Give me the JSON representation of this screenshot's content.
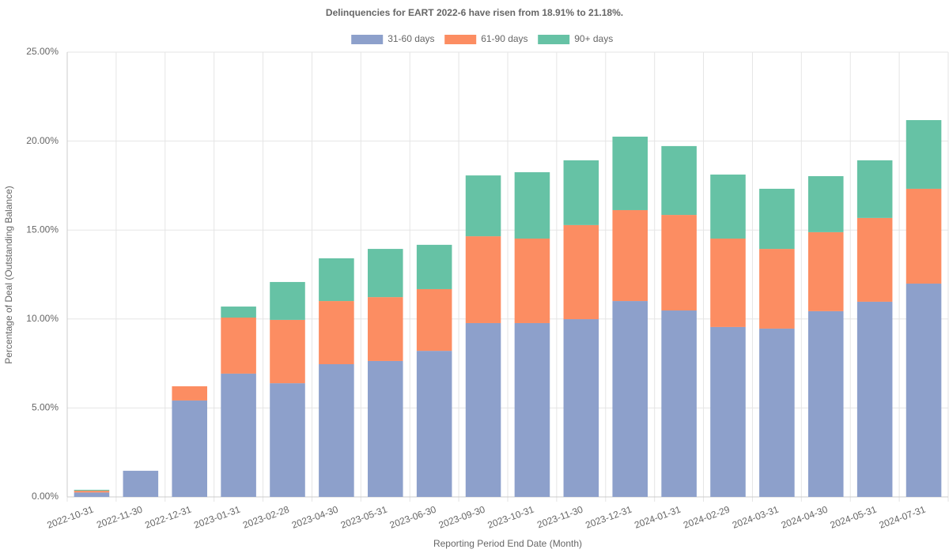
{
  "chart_data": {
    "type": "stacked_bar",
    "title": "Delinquencies for EART 2022-6 have risen from 18.91% to 21.18%.",
    "x_label": "Reporting Period End Date (Month)",
    "y_label": "Percentage of Deal (Outstanding Balance)",
    "categories": [
      "2022-10-31",
      "2022-11-30",
      "2022-12-31",
      "2023-01-31",
      "2023-02-28",
      "2023-04-30",
      "2023-05-31",
      "2023-06-30",
      "2023-09-30",
      "2023-10-31",
      "2023-11-30",
      "2023-12-31",
      "2024-01-31",
      "2024-02-29",
      "2024-03-31",
      "2024-04-30",
      "2024-05-31",
      "2024-07-31"
    ],
    "series": [
      {
        "name": "31-60 days",
        "color": "#8da0cb",
        "values": [
          0.25,
          1.47,
          5.42,
          6.93,
          6.39,
          7.46,
          7.64,
          8.21,
          9.77,
          9.77,
          9.99,
          11.01,
          10.48,
          9.55,
          9.46,
          10.44,
          10.97,
          11.99
        ]
      },
      {
        "name": "61-90 days",
        "color": "#fc8d62",
        "values": [
          0.1,
          0,
          0.8,
          3.15,
          3.56,
          3.55,
          3.59,
          3.47,
          4.88,
          4.75,
          5.29,
          5.11,
          5.37,
          4.97,
          4.48,
          4.44,
          4.71,
          5.33
        ]
      },
      {
        "name": "90+ days",
        "color": "#66c2a5",
        "values": [
          0.05,
          0,
          0,
          0.62,
          2.13,
          2.4,
          2.71,
          2.49,
          3.42,
          3.73,
          3.64,
          4.13,
          3.87,
          3.6,
          3.38,
          3.15,
          3.24,
          3.86
        ]
      }
    ],
    "ylim": [
      0,
      25
    ],
    "yticks": [
      {
        "value": 0,
        "label": "0.00%"
      },
      {
        "value": 5,
        "label": "5.00%"
      },
      {
        "value": 10,
        "label": "10.00%"
      },
      {
        "value": 15,
        "label": "15.00%"
      },
      {
        "value": 20,
        "label": "20.00%"
      },
      {
        "value": 25,
        "label": "25.00%"
      }
    ],
    "grid": true,
    "legend": "top"
  }
}
